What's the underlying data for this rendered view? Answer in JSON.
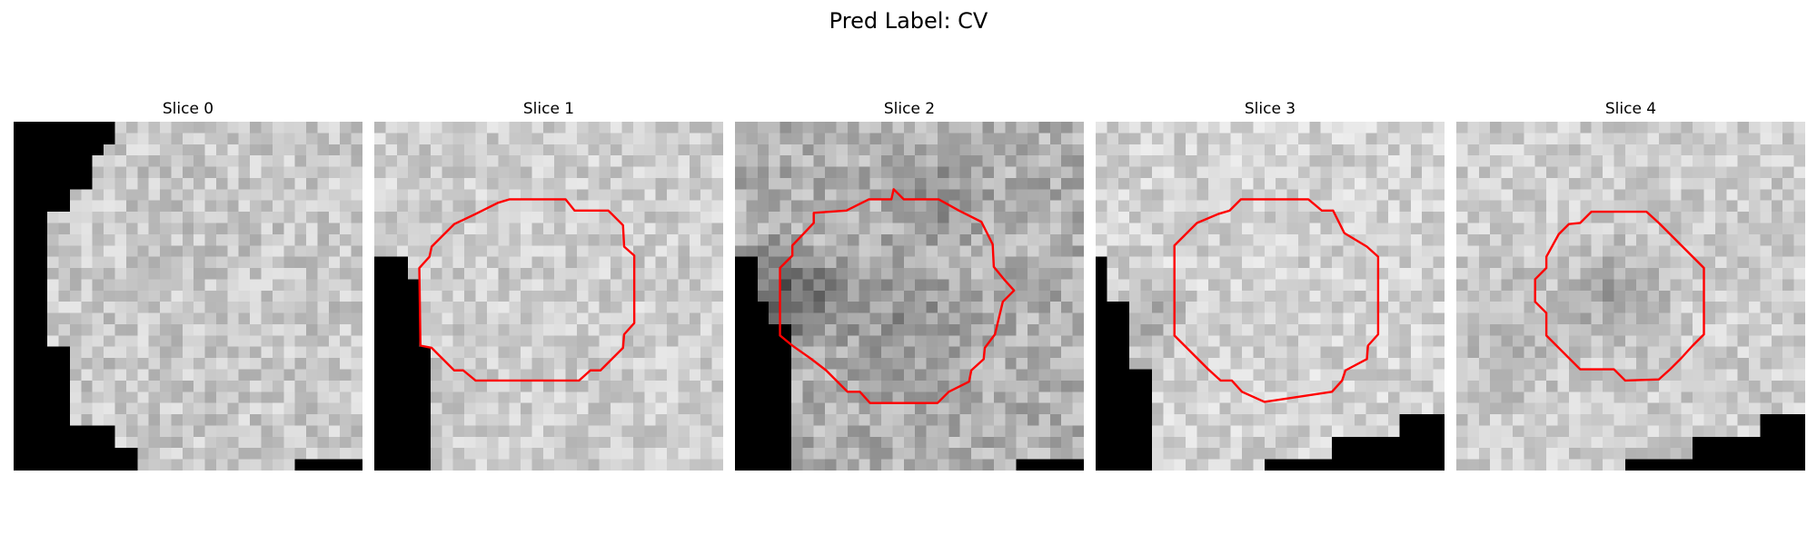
{
  "figure": {
    "title": "Pred Label: CV"
  },
  "panels": [
    {
      "title": "Slice 0",
      "has_contour": false,
      "contour_color": "#ff0000",
      "tone": "light gray"
    },
    {
      "title": "Slice 1",
      "has_contour": true,
      "contour_color": "#ff0000",
      "tone": "light gray"
    },
    {
      "title": "Slice 2",
      "has_contour": true,
      "contour_color": "#ff0000",
      "tone": "medium gray"
    },
    {
      "title": "Slice 3",
      "has_contour": true,
      "contour_color": "#ff0000",
      "tone": "light gray"
    },
    {
      "title": "Slice 4",
      "has_contour": true,
      "contour_color": "#ff0000",
      "tone": "light gray"
    }
  ],
  "colors": {
    "background": "#ffffff",
    "mask": "#000000",
    "contour": "#ff0000"
  }
}
